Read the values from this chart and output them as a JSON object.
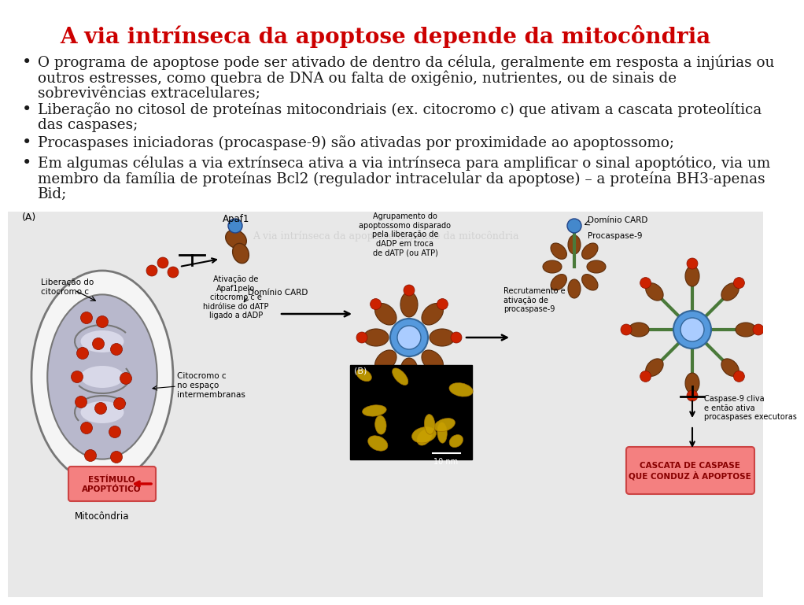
{
  "title": "A via intrínseca da apoptose depende da mitocôndria",
  "title_color": "#cc0000",
  "title_fontsize": 20,
  "bg_color": "#ffffff",
  "bullet_color": "#1a1a1a",
  "bullet_fontsize": 13.2,
  "font_family": "DejaVu Serif",
  "bullets": [
    "O programa de apoptose pode ser ativado de dentro da célula, geralmente em resposta a injúrias ou outros estresses, como quebra de DNA ou falta de oxigênio, nutrientes, ou de sinais de sobrevivências extracelulares;",
    "Liberação no citosol de proteínas mitocondriais (ex. citocromo c) que ativam a cascata proteolítica das caspases;",
    "Procaspases iniciadoras (procaspase-9) são ativadas por proximidade ao apoptossomo;",
    "Em algumas células a via extrínseca ativa a via intrínseca para amplificar o sinal apoptótico, via um membro da família de proteínas Bcl2 (regulador intracelular da apoptose) – a proteína BH3-apenas Bid;"
  ],
  "diag_bg": "#e8e8e8",
  "mito_outer_fc": "#ffffff",
  "mito_inner_fc": "#c0c0cc",
  "mito_crista_fc": "#d8d8e8",
  "red_dot_fc": "#cc2200",
  "brown_fc": "#8B4513",
  "blue_hub_fc": "#5599dd",
  "blue_hub_inner_fc": "#aaccff",
  "green_arm_color": "#336633",
  "pink_box_fc": "#f48080",
  "yellow_box_fc": "#ffffaa"
}
